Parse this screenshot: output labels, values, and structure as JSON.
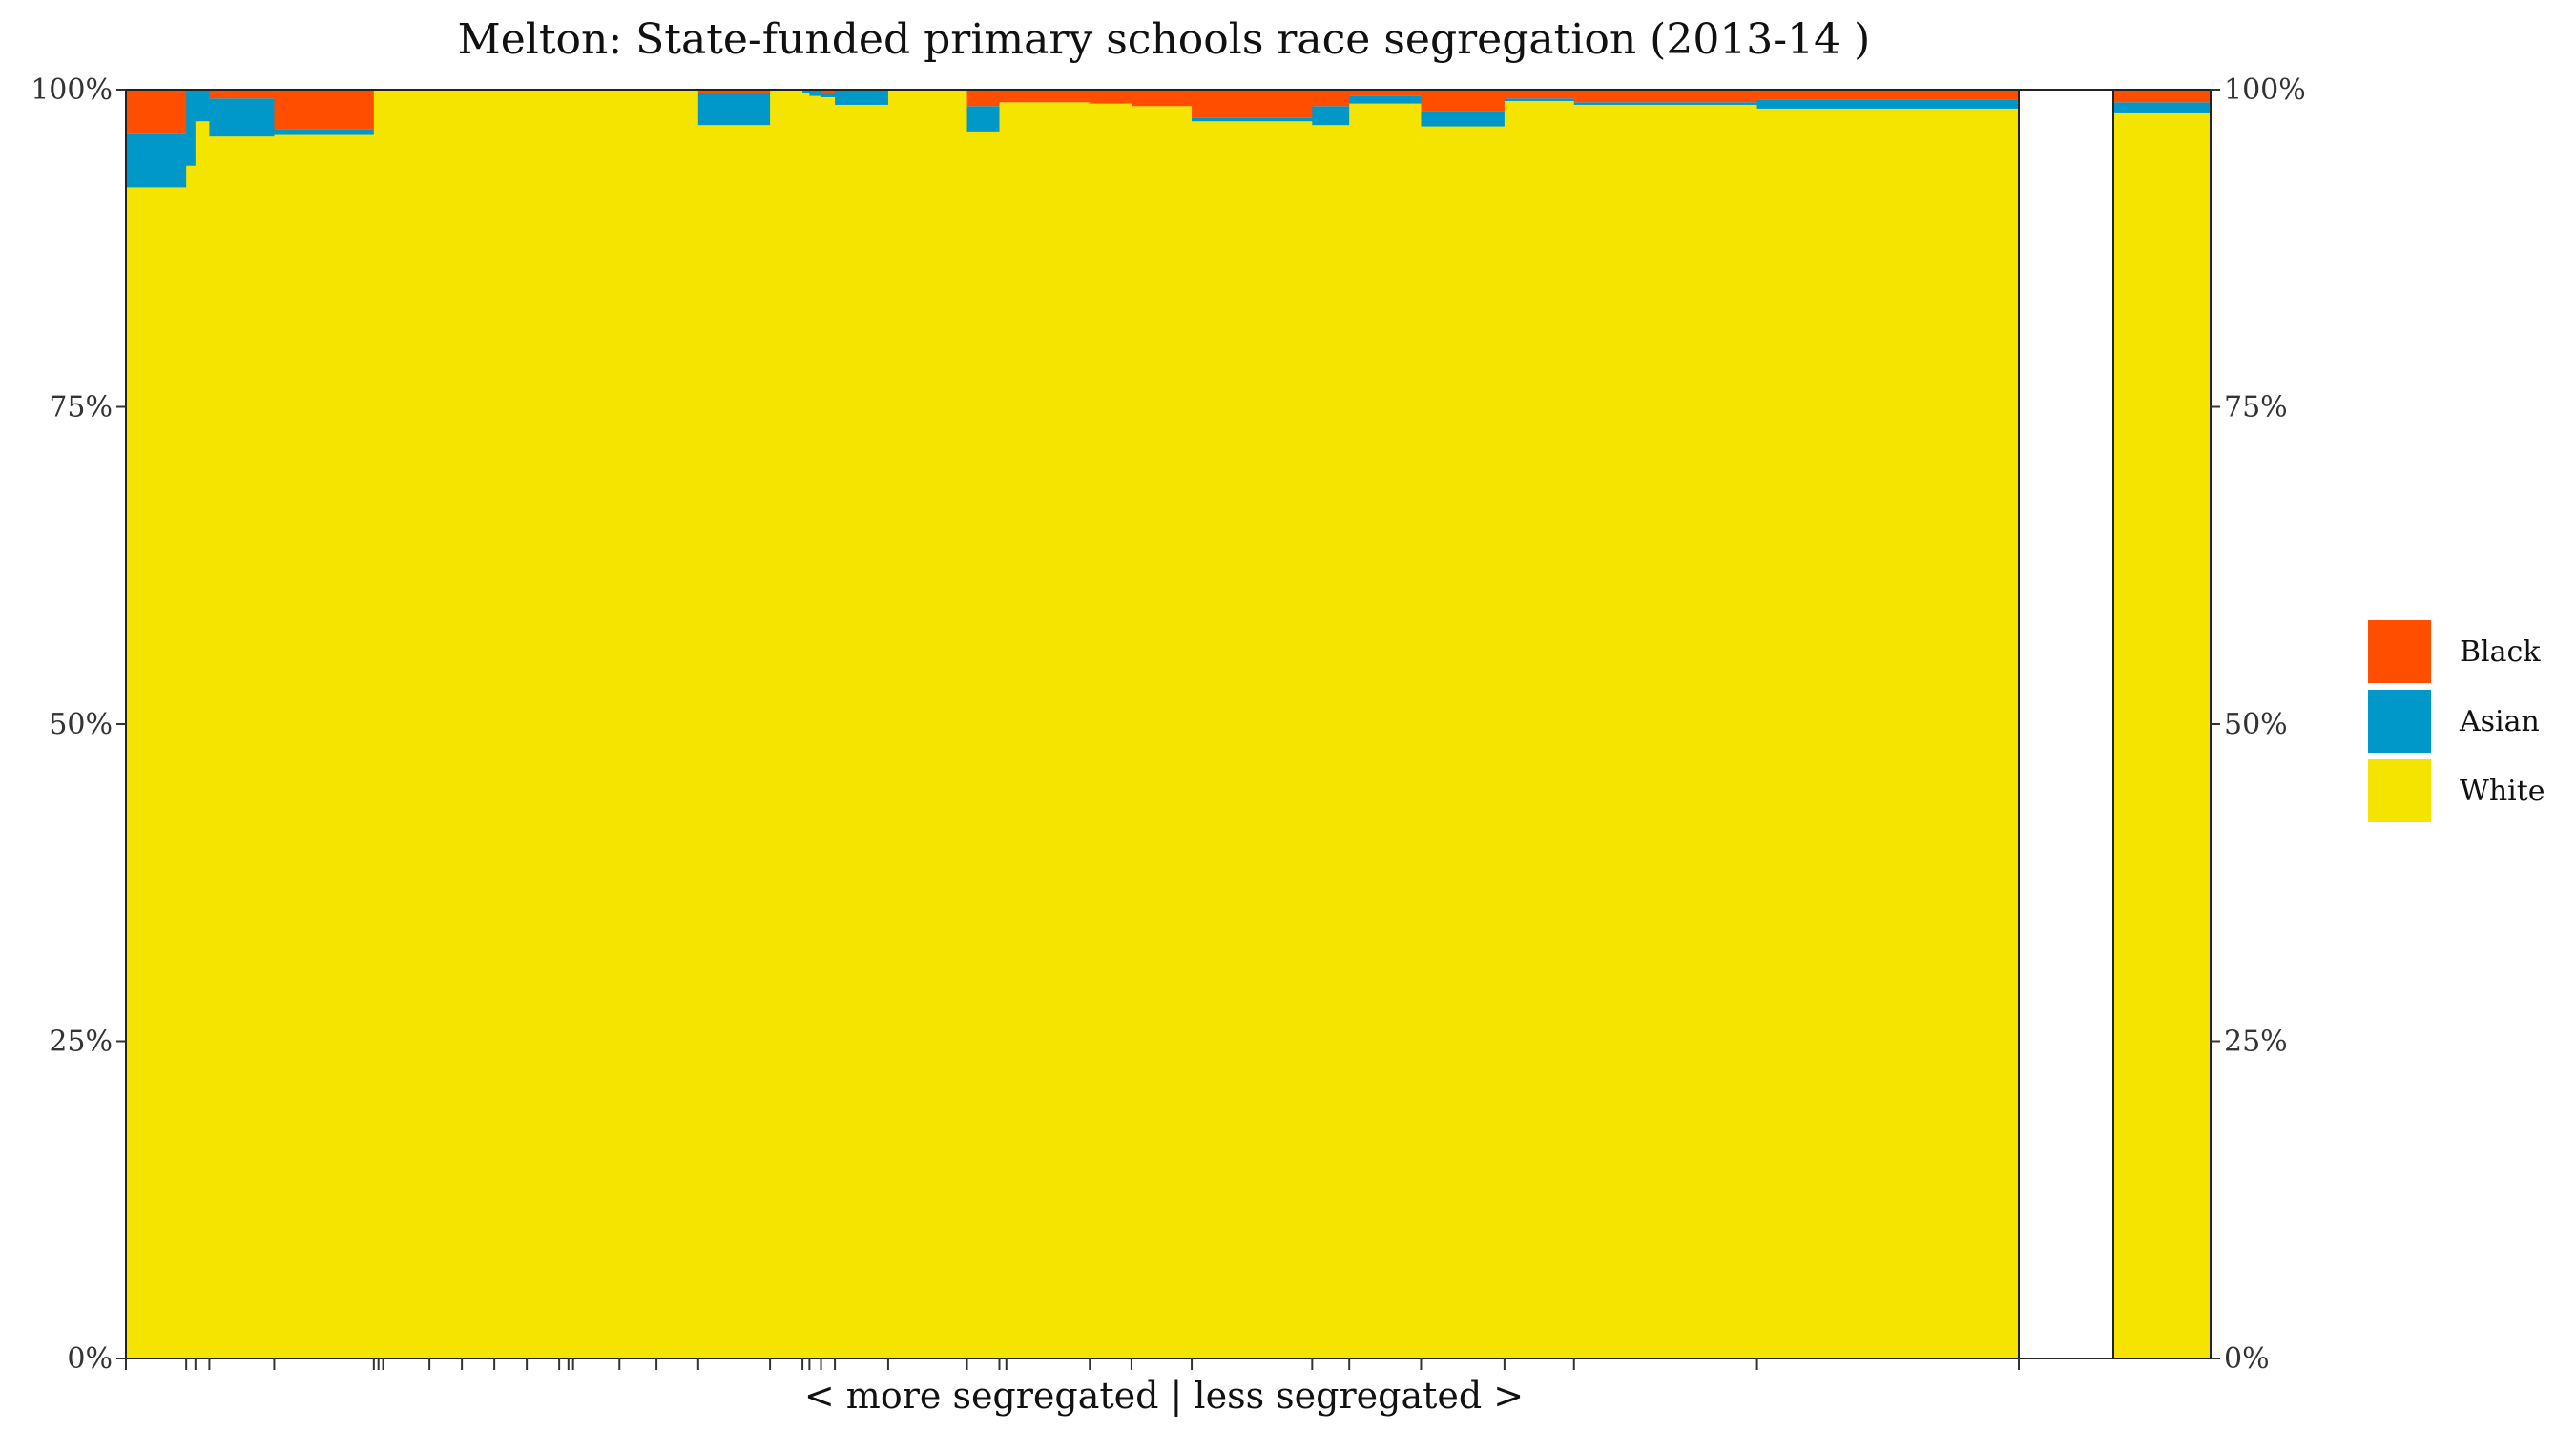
{
  "chart_data": {
    "type": "bar",
    "subtype": "stacked-proportion (variable width)",
    "title": "Melton: State-funded primary schools race segregation (2013-14 )",
    "xlabel": "< more segregated | less segregated >",
    "ylabel": "",
    "ylim": [
      0,
      100
    ],
    "y_ticks": [
      "0%",
      "25%",
      "50%",
      "75%",
      "100%"
    ],
    "y_tick_values": [
      0,
      25,
      50,
      75,
      100
    ],
    "legend": {
      "placement": "right",
      "entries": [
        {
          "name": "Black",
          "color": "#FF4E00"
        },
        {
          "name": "Asian",
          "color": "#0098C9"
        },
        {
          "name": "White",
          "color": "#F4E400"
        }
      ]
    },
    "series_order": [
      "White",
      "Asian",
      "Black"
    ],
    "colors": {
      "Black": "#FF4E00",
      "Asian": "#0098C9",
      "White": "#F4E400",
      "frame": "#222222"
    },
    "schools": [
      {
        "width": 2.6,
        "white": 92.3,
        "asian": 4.3,
        "black": 3.4
      },
      {
        "width": 0.4,
        "white": 94.0,
        "asian": 6.0,
        "black": 0.0
      },
      {
        "width": 0.6,
        "white": 97.5,
        "asian": 2.5,
        "black": 0.0
      },
      {
        "width": 2.8,
        "white": 96.3,
        "asian": 3.0,
        "black": 0.7
      },
      {
        "width": 4.3,
        "white": 96.5,
        "asian": 0.4,
        "black": 3.1
      },
      {
        "width": 0.2,
        "white": 100,
        "asian": 0,
        "black": 0
      },
      {
        "width": 0.2,
        "white": 100,
        "asian": 0,
        "black": 0
      },
      {
        "width": 2.0,
        "white": 100,
        "asian": 0,
        "black": 0
      },
      {
        "width": 1.4,
        "white": 100,
        "asian": 0,
        "black": 0
      },
      {
        "width": 1.4,
        "white": 100,
        "asian": 0,
        "black": 0
      },
      {
        "width": 1.4,
        "white": 100,
        "asian": 0,
        "black": 0
      },
      {
        "width": 1.4,
        "white": 100,
        "asian": 0,
        "black": 0
      },
      {
        "width": 0.4,
        "white": 100,
        "asian": 0,
        "black": 0
      },
      {
        "width": 0.2,
        "white": 100,
        "asian": 0,
        "black": 0
      },
      {
        "width": 2.0,
        "white": 100,
        "asian": 0,
        "black": 0
      },
      {
        "width": 1.6,
        "white": 100,
        "asian": 0,
        "black": 0
      },
      {
        "width": 1.8,
        "white": 100,
        "asian": 0,
        "black": 0
      },
      {
        "width": 3.1,
        "white": 97.2,
        "asian": 2.5,
        "black": 0.3
      },
      {
        "width": 1.4,
        "white": 100,
        "asian": 0,
        "black": 0
      },
      {
        "width": 0.3,
        "white": 99.7,
        "asian": 0.3,
        "black": 0.0
      },
      {
        "width": 0.5,
        "white": 99.5,
        "asian": 0.5,
        "black": 0.0
      },
      {
        "width": 0.6,
        "white": 99.4,
        "asian": 0.3,
        "black": 0.3
      },
      {
        "width": 2.3,
        "white": 98.8,
        "asian": 1.2,
        "black": 0.0
      },
      {
        "width": 3.4,
        "white": 100,
        "asian": 0,
        "black": 0
      },
      {
        "width": 1.4,
        "white": 96.7,
        "asian": 2.0,
        "black": 1.3
      },
      {
        "width": 0.3,
        "white": 99.0,
        "asian": 0.0,
        "black": 1.0
      },
      {
        "width": 3.6,
        "white": 99.0,
        "asian": 0.0,
        "black": 1.0
      },
      {
        "width": 1.8,
        "white": 98.9,
        "asian": 0.0,
        "black": 1.1
      },
      {
        "width": 2.6,
        "white": 98.7,
        "asian": 0.0,
        "black": 1.3
      },
      {
        "width": 5.2,
        "white": 97.5,
        "asian": 0.3,
        "black": 2.2
      },
      {
        "width": 1.6,
        "white": 97.2,
        "asian": 1.5,
        "black": 1.3
      },
      {
        "width": 3.1,
        "white": 98.9,
        "asian": 0.6,
        "black": 0.5
      },
      {
        "width": 3.6,
        "white": 97.1,
        "asian": 1.2,
        "black": 1.7
      },
      {
        "width": 3.0,
        "white": 99.1,
        "asian": 0.2,
        "black": 0.7
      },
      {
        "width": 7.9,
        "white": 98.8,
        "asian": 0.2,
        "black": 1.0
      },
      {
        "width": 11.3,
        "white": 98.5,
        "asian": 0.7,
        "black": 0.8
      }
    ],
    "gap_after_schools": true,
    "summary_bar": {
      "white": 98.2,
      "asian": 0.8,
      "black": 1.0
    }
  }
}
